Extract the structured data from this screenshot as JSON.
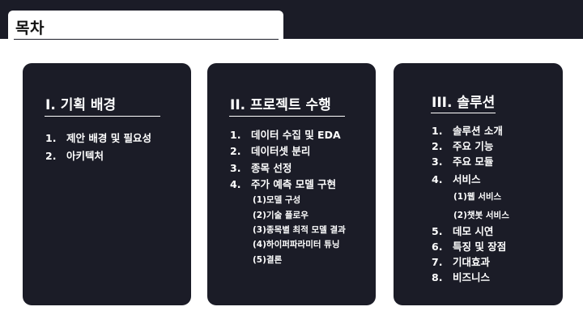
{
  "header": {
    "title": "목차"
  },
  "sections": [
    {
      "title": "I. 기획 배경",
      "items": [
        {
          "num": "1.",
          "label": "제안 배경 및 필요성"
        },
        {
          "num": "2.",
          "label": "아키텍처"
        }
      ]
    },
    {
      "title": "II. 프로젝트 수행",
      "items": [
        {
          "num": "1.",
          "label": "데이터 수집 및 EDA"
        },
        {
          "num": "2.",
          "label": "데이터셋 분리"
        },
        {
          "num": "3.",
          "label": "종목 선정"
        },
        {
          "num": "4.",
          "label": "주가 예측 모델 구현"
        }
      ],
      "subitems": [
        "(1)모델 구성",
        "(2)기술 플로우",
        "(3)종목별 최적 모델 결과",
        "(4)하이퍼파라미터 튜닝",
        "(5)결론"
      ]
    },
    {
      "title": "III. 솔루션",
      "items": [
        {
          "num": "1.",
          "label": "솔루션 소개"
        },
        {
          "num": "2.",
          "label": "주요 기능"
        },
        {
          "num": "3.",
          "label": "주요 모듈"
        },
        {
          "num": "4.",
          "label": "서비스"
        },
        {
          "num": "5.",
          "label": "데모 시연"
        },
        {
          "num": "6.",
          "label": "특징 및 장점"
        },
        {
          "num": "7.",
          "label": "기대효과"
        },
        {
          "num": "8.",
          "label": "비즈니스"
        }
      ],
      "subitems": [
        "(1)웹 서비스",
        "(2)챗봇 서비스"
      ]
    }
  ]
}
